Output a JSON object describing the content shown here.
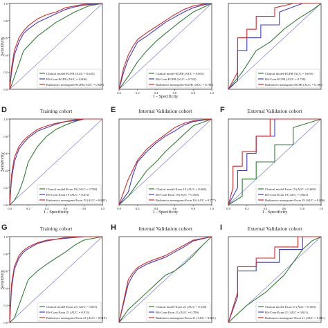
{
  "figure": {
    "xlabel": "1 - Specificity",
    "ylabel": "Sensitivity",
    "reference_line_color": "#6a6ad0",
    "series_colors": [
      "#2e7d32",
      "#3b3bd6",
      "#d62728"
    ]
  },
  "chart_data": [
    {
      "type": "line",
      "panel": "",
      "title": "",
      "xlabel": "",
      "ylabel": "Sensitivity",
      "xlim": [
        0,
        1
      ],
      "ylim": [
        0,
        1
      ],
      "xticks": [],
      "yticks": [
        "0.0",
        "0.2",
        "0.4",
        "0.6",
        "0.8",
        "1.0"
      ],
      "series": [
        {
          "name": "Clinical model-EGFR (AUC = 0.635)",
          "color": "#2e7d32",
          "x": [
            0,
            0.02,
            0.15,
            0.3,
            0.5,
            0.7,
            0.85,
            1.0
          ],
          "y": [
            0,
            0.05,
            0.45,
            0.62,
            0.78,
            0.9,
            0.97,
            1.0
          ]
        },
        {
          "name": "RS-Com-EGFR (AUC = 0.806)",
          "color": "#3b3bd6",
          "x": [
            0,
            0.02,
            0.05,
            0.1,
            0.15,
            0.2,
            0.3,
            0.4,
            0.5,
            0.6,
            0.7,
            0.8,
            1.0
          ],
          "y": [
            0,
            0.2,
            0.4,
            0.55,
            0.65,
            0.7,
            0.78,
            0.83,
            0.88,
            0.93,
            0.96,
            0.98,
            1.0
          ]
        },
        {
          "name": "Radiomics nomogram-EGFR (AUC = 0.829)",
          "color": "#d62728",
          "x": [
            0,
            0.02,
            0.05,
            0.1,
            0.15,
            0.2,
            0.3,
            0.4,
            0.5,
            0.6,
            0.7,
            0.8,
            1.0
          ],
          "y": [
            0,
            0.25,
            0.45,
            0.6,
            0.68,
            0.74,
            0.82,
            0.87,
            0.9,
            0.95,
            0.97,
            0.99,
            1.0
          ]
        }
      ]
    },
    {
      "type": "line",
      "panel": "",
      "title": "",
      "xlabel": "1 - Specificity",
      "ylabel": "",
      "xlim": [
        0,
        1
      ],
      "ylim": [
        0,
        1
      ],
      "xticks": [
        "0.0",
        "0.2",
        "0.4",
        "0.6",
        "0.8",
        "1.0"
      ],
      "yticks": [],
      "series": [
        {
          "name": "Clinical model-EGFR (AUC = 0.605)",
          "color": "#2e7d32",
          "x": [
            0,
            0.1,
            0.2,
            0.3,
            0.4,
            0.5,
            0.65,
            0.8,
            1.0
          ],
          "y": [
            0,
            0.15,
            0.32,
            0.45,
            0.56,
            0.65,
            0.78,
            0.9,
            1.0
          ]
        },
        {
          "name": "RS-Com-EGFR (AUC = 0.745)",
          "color": "#3b3bd6",
          "x": [
            0,
            0.05,
            0.1,
            0.15,
            0.2,
            0.3,
            0.4,
            0.5,
            0.6,
            0.7,
            0.8,
            0.9,
            1.0
          ],
          "y": [
            0,
            0.2,
            0.35,
            0.45,
            0.55,
            0.62,
            0.7,
            0.78,
            0.84,
            0.9,
            0.95,
            0.98,
            1.0
          ]
        },
        {
          "name": "Radiomics nomogram-EGFR (AUC = 0.760)",
          "color": "#d62728",
          "x": [
            0,
            0.05,
            0.1,
            0.15,
            0.2,
            0.3,
            0.4,
            0.5,
            0.6,
            0.7,
            0.8,
            0.9,
            1.0
          ],
          "y": [
            0,
            0.25,
            0.4,
            0.5,
            0.58,
            0.66,
            0.73,
            0.8,
            0.87,
            0.93,
            0.97,
            0.99,
            1.0
          ]
        }
      ]
    },
    {
      "type": "line",
      "panel": "",
      "title": "",
      "xlabel": "",
      "ylabel": "",
      "xlim": [
        0,
        1
      ],
      "ylim": [
        0,
        1
      ],
      "xticks": [],
      "yticks": [],
      "series": [
        {
          "name": "Clinical model-EGFR (AUC = 0.655)",
          "color": "#2e7d32",
          "x": [
            0,
            0.15,
            0.3,
            0.45,
            0.6,
            0.75,
            0.9,
            1.0
          ],
          "y": [
            0,
            0.2,
            0.45,
            0.55,
            0.7,
            0.82,
            0.92,
            1.0
          ]
        },
        {
          "name": "RS-Com-EGFR (AUC = 0.738)",
          "color": "#3b3bd6",
          "x": [
            0,
            0.1,
            0.1,
            0.2,
            0.2,
            0.35,
            0.35,
            0.55,
            0.55,
            0.8,
            1.0
          ],
          "y": [
            0,
            0.1,
            0.45,
            0.45,
            0.6,
            0.6,
            0.75,
            0.75,
            0.9,
            1.0,
            1.0
          ]
        },
        {
          "name": "Radiomics nomogram-EGFR (AUC = 0.780)",
          "color": "#d62728",
          "x": [
            0,
            0.1,
            0.1,
            0.2,
            0.2,
            0.3,
            0.3,
            0.5,
            0.5,
            0.7,
            1.0
          ],
          "y": [
            0,
            0.2,
            0.6,
            0.6,
            0.7,
            0.7,
            0.85,
            0.85,
            0.95,
            1.0,
            1.0
          ]
        }
      ]
    },
    {
      "type": "line",
      "panel": "D",
      "title": "Training cohort",
      "xlabel": "1 - Specificity",
      "ylabel": "Sensitivity",
      "xlim": [
        0,
        1
      ],
      "ylim": [
        0,
        1
      ],
      "xticks": [
        "0.0",
        "0.2",
        "0.4",
        "0.6",
        "0.8",
        "1.0"
      ],
      "yticks": [
        "0.0",
        "0.2",
        "0.4",
        "0.6",
        "0.8",
        "1.0"
      ],
      "series": [
        {
          "name": "Clinical model-Exon 19 (AUC = 0.700)",
          "color": "#2e7d32",
          "x": [
            0,
            0.05,
            0.1,
            0.15,
            0.2,
            0.3,
            0.4,
            0.5,
            0.6,
            0.7,
            0.8,
            1.0
          ],
          "y": [
            0,
            0.05,
            0.15,
            0.3,
            0.5,
            0.68,
            0.8,
            0.88,
            0.93,
            0.97,
            1.0,
            1.0
          ]
        },
        {
          "name": "RS-Com-Exon 19 (AUC = 0.872)",
          "color": "#3b3bd6",
          "x": [
            0,
            0.02,
            0.05,
            0.1,
            0.15,
            0.2,
            0.3,
            0.4,
            0.5,
            0.6,
            0.7,
            0.8,
            1.0
          ],
          "y": [
            0,
            0.3,
            0.5,
            0.65,
            0.72,
            0.78,
            0.86,
            0.9,
            0.94,
            0.97,
            0.98,
            1.0,
            1.0
          ]
        },
        {
          "name": "Radiomics nomogram-Exon 19 (AUC = 0.885)",
          "color": "#d62728",
          "x": [
            0,
            0.02,
            0.05,
            0.1,
            0.15,
            0.2,
            0.3,
            0.4,
            0.5,
            0.6,
            0.7,
            0.8,
            1.0
          ],
          "y": [
            0,
            0.35,
            0.55,
            0.68,
            0.75,
            0.8,
            0.88,
            0.92,
            0.95,
            0.97,
            0.99,
            1.0,
            1.0
          ]
        }
      ]
    },
    {
      "type": "line",
      "panel": "E",
      "title": "Internal Validation cohort",
      "xlabel": "1 - Specificity",
      "ylabel": "",
      "xlim": [
        0,
        1
      ],
      "ylim": [
        0,
        1
      ],
      "xticks": [
        "0.0",
        "0.2",
        "0.4",
        "0.6",
        "0.8",
        "1.0"
      ],
      "yticks": [],
      "series": [
        {
          "name": "Clinical model-Exon 19 (AUC = 0.606)",
          "color": "#2e7d32",
          "x": [
            0,
            0.1,
            0.2,
            0.3,
            0.4,
            0.5,
            0.6,
            0.7,
            0.8,
            1.0
          ],
          "y": [
            0,
            0.1,
            0.25,
            0.4,
            0.5,
            0.62,
            0.72,
            0.82,
            0.92,
            1.0
          ]
        },
        {
          "name": "RS-Com-Exon 19 (AUC = 0.760)",
          "color": "#3b3bd6",
          "x": [
            0,
            0.1,
            0.15,
            0.2,
            0.3,
            0.4,
            0.5,
            0.6,
            0.7,
            0.8,
            1.0
          ],
          "y": [
            0,
            0.15,
            0.35,
            0.5,
            0.62,
            0.72,
            0.8,
            0.86,
            0.93,
            0.97,
            1.0
          ]
        },
        {
          "name": "Radiomics nomogram-Exon 19 (AUC = 0.777)",
          "color": "#d62728",
          "x": [
            0,
            0.05,
            0.1,
            0.2,
            0.3,
            0.4,
            0.5,
            0.6,
            0.7,
            0.8,
            1.0
          ],
          "y": [
            0,
            0.15,
            0.3,
            0.52,
            0.65,
            0.74,
            0.82,
            0.9,
            0.95,
            0.98,
            1.0
          ]
        }
      ]
    },
    {
      "type": "line",
      "panel": "F",
      "title": "External Validation cohort",
      "xlabel": "1 - Specificity",
      "ylabel": "",
      "xlim": [
        0,
        1
      ],
      "ylim": [
        0,
        1
      ],
      "xticks": [
        "0.0",
        "0.2",
        "0.4",
        "0.6",
        "0.8",
        "1.0"
      ],
      "yticks": [],
      "series": [
        {
          "name": "Clinical model-Exon 19 (AUC = 0.609)",
          "color": "#2e7d32",
          "x": [
            0,
            0.15,
            0.15,
            0.3,
            0.3,
            0.5,
            0.5,
            0.7,
            0.7,
            1.0
          ],
          "y": [
            0,
            0.1,
            0.3,
            0.3,
            0.5,
            0.5,
            0.7,
            0.7,
            0.9,
            1.0
          ]
        },
        {
          "name": "RS-Com-Exon 19 (AUC = 0.825)",
          "color": "#3b3bd6",
          "x": [
            0,
            0.1,
            0.1,
            0.2,
            0.2,
            0.3,
            0.3,
            0.5,
            0.5,
            0.6,
            1.0
          ],
          "y": [
            0,
            0.2,
            0.4,
            0.4,
            0.6,
            0.6,
            0.8,
            0.8,
            1.0,
            1.0,
            1.0
          ]
        },
        {
          "name": "Radiomics nomogram-Exon 19 (AUC = 0.846)",
          "color": "#d62728",
          "x": [
            0,
            0.05,
            0.05,
            0.15,
            0.15,
            0.3,
            0.3,
            0.45,
            0.45,
            0.6,
            1.0
          ],
          "y": [
            0,
            0.2,
            0.45,
            0.45,
            0.62,
            0.62,
            0.8,
            0.8,
            1.0,
            1.0,
            1.0
          ]
        }
      ]
    },
    {
      "type": "line",
      "panel": "G",
      "title": "Training cohort",
      "xlabel": "",
      "ylabel": "Sensitivity",
      "xlim": [
        0,
        1
      ],
      "ylim": [
        0,
        1
      ],
      "xticks": [],
      "yticks": [
        "0.0",
        "0.2",
        "0.4",
        "0.6",
        "0.8",
        "1.0"
      ],
      "series": [
        {
          "name": "Clinical model-Exon 21 (AUC = 0.655)",
          "color": "#2e7d32",
          "x": [
            0,
            0.05,
            0.1,
            0.2,
            0.3,
            0.4,
            0.5,
            0.6,
            0.7,
            0.8,
            1.0
          ],
          "y": [
            0,
            0.05,
            0.2,
            0.5,
            0.6,
            0.68,
            0.75,
            0.82,
            0.9,
            0.96,
            1.0
          ]
        },
        {
          "name": "RS-Com-Exon 21 (AUC = 0.913)",
          "color": "#3b3bd6",
          "x": [
            0,
            0.02,
            0.05,
            0.1,
            0.15,
            0.2,
            0.3,
            0.4,
            0.5,
            0.6,
            0.8,
            1.0
          ],
          "y": [
            0,
            0.4,
            0.62,
            0.75,
            0.82,
            0.86,
            0.92,
            0.95,
            0.97,
            0.98,
            1.0,
            1.0
          ]
        },
        {
          "name": "Radiomics nomogram-Exon 21 (AUC = 0.919)",
          "color": "#d62728",
          "x": [
            0,
            0.02,
            0.05,
            0.1,
            0.15,
            0.2,
            0.3,
            0.4,
            0.5,
            0.6,
            0.8,
            1.0
          ],
          "y": [
            0,
            0.45,
            0.65,
            0.78,
            0.84,
            0.88,
            0.93,
            0.96,
            0.97,
            0.99,
            1.0,
            1.0
          ]
        }
      ]
    },
    {
      "type": "line",
      "panel": "H",
      "title": "Internal Validation cohort",
      "xlabel": "",
      "ylabel": "",
      "xlim": [
        0,
        1
      ],
      "ylim": [
        0,
        1
      ],
      "xticks": [],
      "yticks": [],
      "series": [
        {
          "name": "Clinical model-Exon 21 (AUC = 0.548)",
          "color": "#2e7d32",
          "x": [
            0,
            0.1,
            0.2,
            0.3,
            0.4,
            0.5,
            0.6,
            0.7,
            0.8,
            0.9,
            1.0
          ],
          "y": [
            0,
            0.15,
            0.25,
            0.35,
            0.45,
            0.55,
            0.6,
            0.68,
            0.78,
            0.9,
            1.0
          ]
        },
        {
          "name": "RS-Com-Exon 21 (AUC = 0.799)",
          "color": "#3b3bd6",
          "x": [
            0,
            0.1,
            0.15,
            0.2,
            0.3,
            0.4,
            0.5,
            0.6,
            0.7,
            0.8,
            1.0
          ],
          "y": [
            0,
            0.45,
            0.55,
            0.62,
            0.68,
            0.72,
            0.76,
            0.82,
            0.88,
            0.95,
            1.0
          ]
        },
        {
          "name": "Radiomics nomogram-Exon 21 (AUC = 0.811)",
          "color": "#d62728",
          "x": [
            0,
            0.1,
            0.15,
            0.2,
            0.3,
            0.4,
            0.5,
            0.6,
            0.7,
            0.8,
            1.0
          ],
          "y": [
            0,
            0.5,
            0.58,
            0.64,
            0.7,
            0.74,
            0.78,
            0.84,
            0.9,
            0.96,
            1.0
          ]
        }
      ]
    },
    {
      "type": "line",
      "panel": "I",
      "title": "External Validation cohort",
      "xlabel": "",
      "ylabel": "",
      "xlim": [
        0,
        1
      ],
      "ylim": [
        0,
        1
      ],
      "xticks": [],
      "yticks": [],
      "series": [
        {
          "name": "Clinical model-Exon 21 (AUC = 0.503)",
          "color": "#2e7d32",
          "x": [
            0,
            0.2,
            0.4,
            0.5,
            0.6,
            0.7,
            0.8,
            0.9,
            1.0
          ],
          "y": [
            0,
            0.2,
            0.35,
            0.45,
            0.55,
            0.7,
            0.85,
            0.95,
            1.0
          ]
        },
        {
          "name": "RS-Com-Exon 21 (AUC = 0.811)",
          "color": "#3b3bd6",
          "x": [
            0,
            0.1,
            0.1,
            0.3,
            0.3,
            0.55,
            0.55,
            0.8,
            0.8,
            1.0
          ],
          "y": [
            0,
            0.3,
            0.6,
            0.6,
            0.7,
            0.7,
            0.85,
            0.85,
            1.0,
            1.0
          ]
        },
        {
          "name": "Radiomics nomogram-Exon 21 (AUC = 0.811)",
          "color": "#d62728",
          "x": [
            0,
            0.1,
            0.1,
            0.3,
            0.3,
            0.5,
            0.5,
            0.75,
            0.75,
            1.0
          ],
          "y": [
            0,
            0.35,
            0.65,
            0.65,
            0.75,
            0.75,
            0.88,
            0.88,
            1.0,
            1.0
          ]
        }
      ]
    }
  ]
}
